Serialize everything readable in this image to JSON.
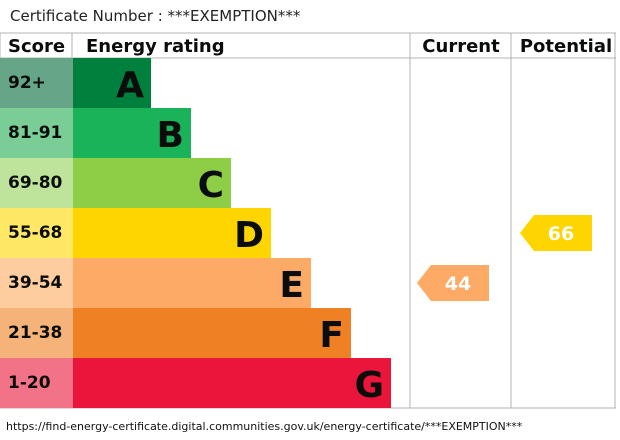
{
  "header": {
    "certificate_label": "Certificate Number : ***EXEMPTION***"
  },
  "footer": {
    "url": "https://find-energy-certificate.digital.communities.gov.uk/energy-certificate/***EXEMPTION***"
  },
  "chart_data": {
    "type": "table",
    "columns": [
      "Score",
      "Energy rating",
      "Current",
      "Potential"
    ],
    "bands": [
      {
        "score": "92+",
        "letter": "A",
        "color": "#007f3d",
        "score_color": "#66a587"
      },
      {
        "score": "81-91",
        "letter": "B",
        "color": "#1ab359",
        "score_color": "#79cd95"
      },
      {
        "score": "69-80",
        "letter": "C",
        "color": "#8dce46",
        "score_color": "#bee39a"
      },
      {
        "score": "55-68",
        "letter": "D",
        "color": "#ffd500",
        "score_color": "#ffe866"
      },
      {
        "score": "39-54",
        "letter": "E",
        "color": "#fcaa65",
        "score_color": "#fdcc9f"
      },
      {
        "score": "21-38",
        "letter": "F",
        "color": "#ef8023",
        "score_color": "#f5b37a"
      },
      {
        "score": "1-20",
        "letter": "G",
        "color": "#e9153b",
        "score_color": "#f27388"
      }
    ],
    "current": {
      "value": 44,
      "band": "E",
      "color": "#fcaa65"
    },
    "potential": {
      "value": 66,
      "band": "D",
      "color": "#ffd500"
    }
  }
}
